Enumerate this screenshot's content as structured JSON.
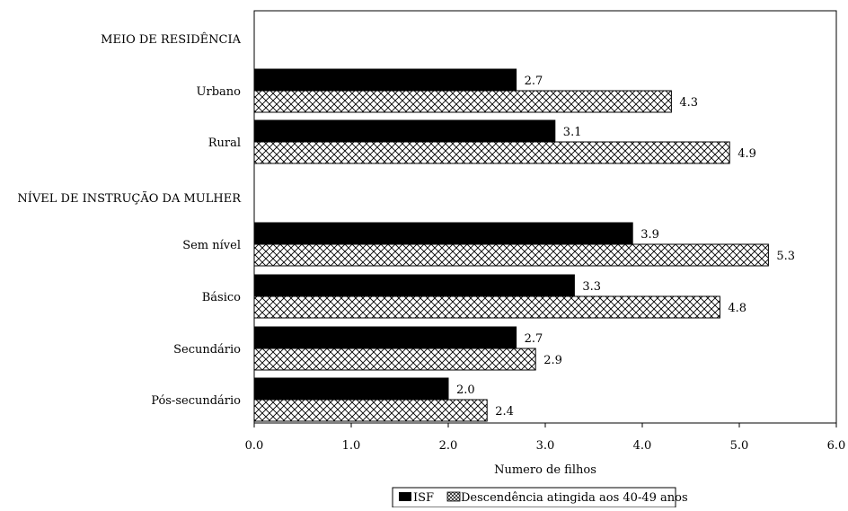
{
  "chart_data": {
    "type": "bar",
    "orientation": "horizontal",
    "xlabel": "Numero de filhos",
    "xlim": [
      0,
      6
    ],
    "x_ticks": [
      "0.0",
      "1.0",
      "2.0",
      "3.0",
      "4.0",
      "5.0",
      "6.0"
    ],
    "groups": [
      {
        "heading": "MEIO DE RESIDÊNCIA",
        "categories": [
          "Urbano",
          "Rural"
        ]
      },
      {
        "heading": "NÍVEL DE INSTRUÇÃO DA MULHER",
        "categories": [
          "Sem nível",
          "Básico",
          "Secundário",
          "Pós-secundário"
        ]
      }
    ],
    "categories": [
      "Urbano",
      "Rural",
      "Sem nível",
      "Básico",
      "Secundário",
      "Pós-secundário"
    ],
    "series": [
      {
        "name": "ISF",
        "values": [
          2.7,
          3.1,
          3.9,
          3.3,
          2.7,
          2.0
        ],
        "labels": [
          "2.7",
          "3.1",
          "3.9",
          "3.3",
          "2.7",
          "2.0"
        ],
        "fill": "solid-black"
      },
      {
        "name": "Descendência atingida aos 40-49 anos",
        "values": [
          4.3,
          4.9,
          5.3,
          4.8,
          2.9,
          2.4
        ],
        "labels": [
          "4.3",
          "4.9",
          "5.3",
          "4.8",
          "2.9",
          "2.4"
        ],
        "fill": "crosshatch"
      }
    ],
    "grid": false,
    "legend_position": "bottom-center",
    "colors": {
      "series1": "#000000",
      "series2_pattern": "#000000",
      "background": "#ffffff"
    }
  }
}
